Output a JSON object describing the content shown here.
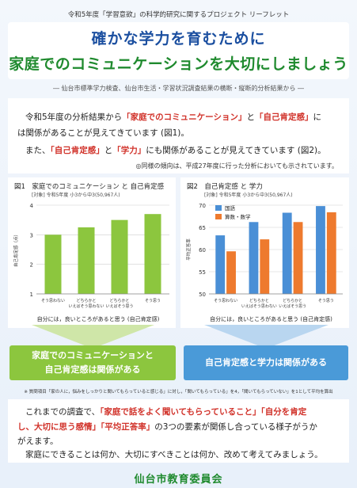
{
  "header": {
    "caption": "令和5年度「学習意欲」の科学的研究に関するプロジェクト リーフレット",
    "title_line1": "確かな学力を育むために",
    "title_line2": "家庭でのコミュニケーションを大切にしましょう",
    "subtitle": "― 仙台市標準学力検査、仙台市生活・学習状況調査結果の横断・縦断的分析結果から ―"
  },
  "intro": {
    "line1_a": "令和5年度の分析結果から",
    "line1_b": "「家庭でのコミュニケーション」",
    "line1_c": "と",
    "line1_d": "「自己肯定感」",
    "line1_e": "に",
    "line2": "は関係があることが見えてきています (図1)。",
    "line3_a": "また、",
    "line3_b": "「自己肯定感」",
    "line3_c": "と",
    "line3_d": "「学力」",
    "line3_e": "にも関係があることが見えてきています (図2)。",
    "note": "◎同様の傾向は、平成27年度に行った分析においても示されています。"
  },
  "chart_data": [
    {
      "type": "bar",
      "title": "図1　家庭でのコミュニケーション と 自己肯定感",
      "subtitle": "[対象] 令和5年度 小3から中3(50,967人)",
      "categories": [
        "そう思わない",
        "どちらかと いえばそう思わない",
        "どちらかと いえばそう思う",
        "そう思う"
      ],
      "values": [
        3.0,
        3.25,
        3.5,
        3.7
      ],
      "ylabel": "自己肯定感（点）",
      "xlabel": "自分には，良いところがあると思う (自己肯定感)",
      "ylim": [
        1,
        4
      ],
      "yticks": [
        "1",
        "2",
        "3",
        "4"
      ],
      "grid": true,
      "color": "#8cc63e"
    },
    {
      "type": "bar",
      "title": "図2　自己肯定感 と 学力",
      "subtitle": "[対象] 令和5年度 小3から中3(50,967人)",
      "categories": [
        "そう思わない",
        "どちらかと いえばそう思わない",
        "どちらかと いえばそう思う",
        "そう思う"
      ],
      "series": [
        {
          "name": "国語",
          "values": [
            63.2,
            66.2,
            68.3,
            69.8
          ],
          "color": "#4a8fd6"
        },
        {
          "name": "算数・数学",
          "values": [
            59.6,
            62.3,
            66.2,
            68.4
          ],
          "color": "#ee7a2e"
        }
      ],
      "ylabel": "平均正答率",
      "xlabel": "自分には，良いところがあると思う (自己肯定感)",
      "ylim": [
        50,
        70
      ],
      "yticks": [
        "50",
        "55",
        "60",
        "65",
        "70"
      ],
      "grid": true,
      "legend": "top-left"
    }
  ],
  "results": {
    "left_line1": "家庭でのコミュニケーションと",
    "left_line2": "自己肯定感は関係がある",
    "right": "自己肯定感と学力は関係がある"
  },
  "footnote": "※ 質問項目「家の人に，悩みをしっかりと聞いてもらっていると感じる」に対し，「聞いてもらっている」を4，「聞いてもらっていない」を1として平均を算出",
  "conclusion": {
    "line1_a": "これまでの調査で、",
    "line1_b": "「家庭で話をよく聞いてもらっていること」",
    "line1_c": "「自分を肯定",
    "line2_a": "し、大切に思う感情」",
    "line2_b": "「平均正答率」",
    "line2_c": "の3つの要素が関係し合っている様子がうか",
    "line3": "がえます。",
    "line4": "家庭にできることは何か、大切にすべきことは何か、改めて考えてみましょう。"
  },
  "org": "仙台市教育委員会",
  "colors": {
    "title_blue": "#1b4fa0",
    "title_green": "#1f8a2e",
    "highlight_red": "#d1322a",
    "bar_green": "#8cc63e",
    "bar_blue": "#4a8fd6",
    "bar_orange": "#ee7a2e"
  }
}
